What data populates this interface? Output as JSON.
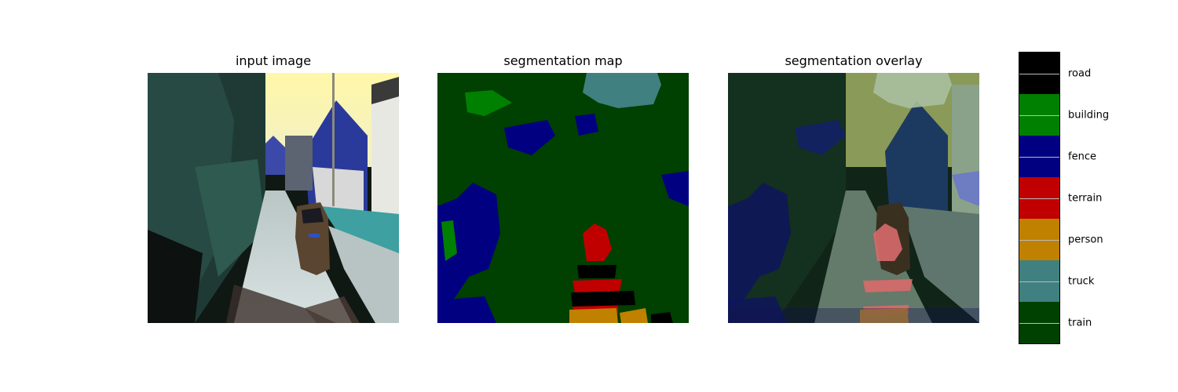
{
  "panels": [
    {
      "title": "input image"
    },
    {
      "title": "segmentation map"
    },
    {
      "title": "segmentation overlay"
    }
  ],
  "legend": {
    "classes": [
      {
        "label": "road",
        "color": "#000000"
      },
      {
        "label": "building",
        "color": "#008000"
      },
      {
        "label": "fence",
        "color": "#000080"
      },
      {
        "label": "terrain",
        "color": "#c00000"
      },
      {
        "label": "person",
        "color": "#c08000"
      },
      {
        "label": "truck",
        "color": "#408080"
      },
      {
        "label": "train",
        "color": "#004000"
      }
    ]
  }
}
